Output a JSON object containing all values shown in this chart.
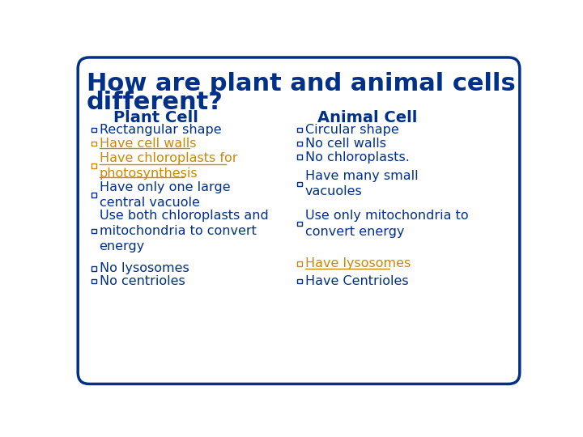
{
  "title_line1": "How are plant and animal cells",
  "title_line2": "different?",
  "title_color": "#003087",
  "background_color": "#FFFFFF",
  "border_color": "#003087",
  "plant_header": "Plant Cell",
  "animal_header": "Animal Cell",
  "header_color": "#003087",
  "dark_color": "#003087",
  "gold_color": "#CC8800",
  "plant_items": [
    {
      "text": "Rectangular shape",
      "color": "#003087",
      "underline": false
    },
    {
      "text": "Have cell walls",
      "color": "#CC8800",
      "underline": true
    },
    {
      "text": "Have chloroplasts for\nphotosynthesis",
      "color": "#CC8800",
      "underline": true
    },
    {
      "text": "Have only one large\ncentral vacuole",
      "color": "#003087",
      "underline": false
    },
    {
      "text": "Use both chloroplasts and\nmitochondria to convert\nenergy",
      "color": "#003087",
      "underline": false
    },
    {
      "text": "No lysosomes",
      "color": "#003087",
      "underline": false
    },
    {
      "text": "No centrioles",
      "color": "#003087",
      "underline": false
    }
  ],
  "animal_items": [
    {
      "text": "Circular shape",
      "color": "#003087",
      "underline": false
    },
    {
      "text": "No cell walls",
      "color": "#003087",
      "underline": false
    },
    {
      "text": "No chloroplasts.",
      "color": "#003087",
      "underline": false
    },
    {
      "text": "Have many small\nvacuoles",
      "color": "#003087",
      "underline": false
    },
    {
      "text": "Use only mitochondria to\nconvert energy",
      "color": "#003087",
      "underline": false
    },
    {
      "text": "Have lysosomes",
      "color": "#CC8800",
      "underline": true
    },
    {
      "text": "Have Centrioles",
      "color": "#003087",
      "underline": false
    }
  ],
  "plant_y": [
    415,
    393,
    357,
    310,
    252,
    192,
    172
  ],
  "animal_y": [
    415,
    393,
    371,
    328,
    264,
    200,
    172
  ],
  "plant_bx": 30,
  "animal_bx": 358,
  "fontsize": 11.5,
  "title_fontsize": 22,
  "header_fontsize": 14
}
